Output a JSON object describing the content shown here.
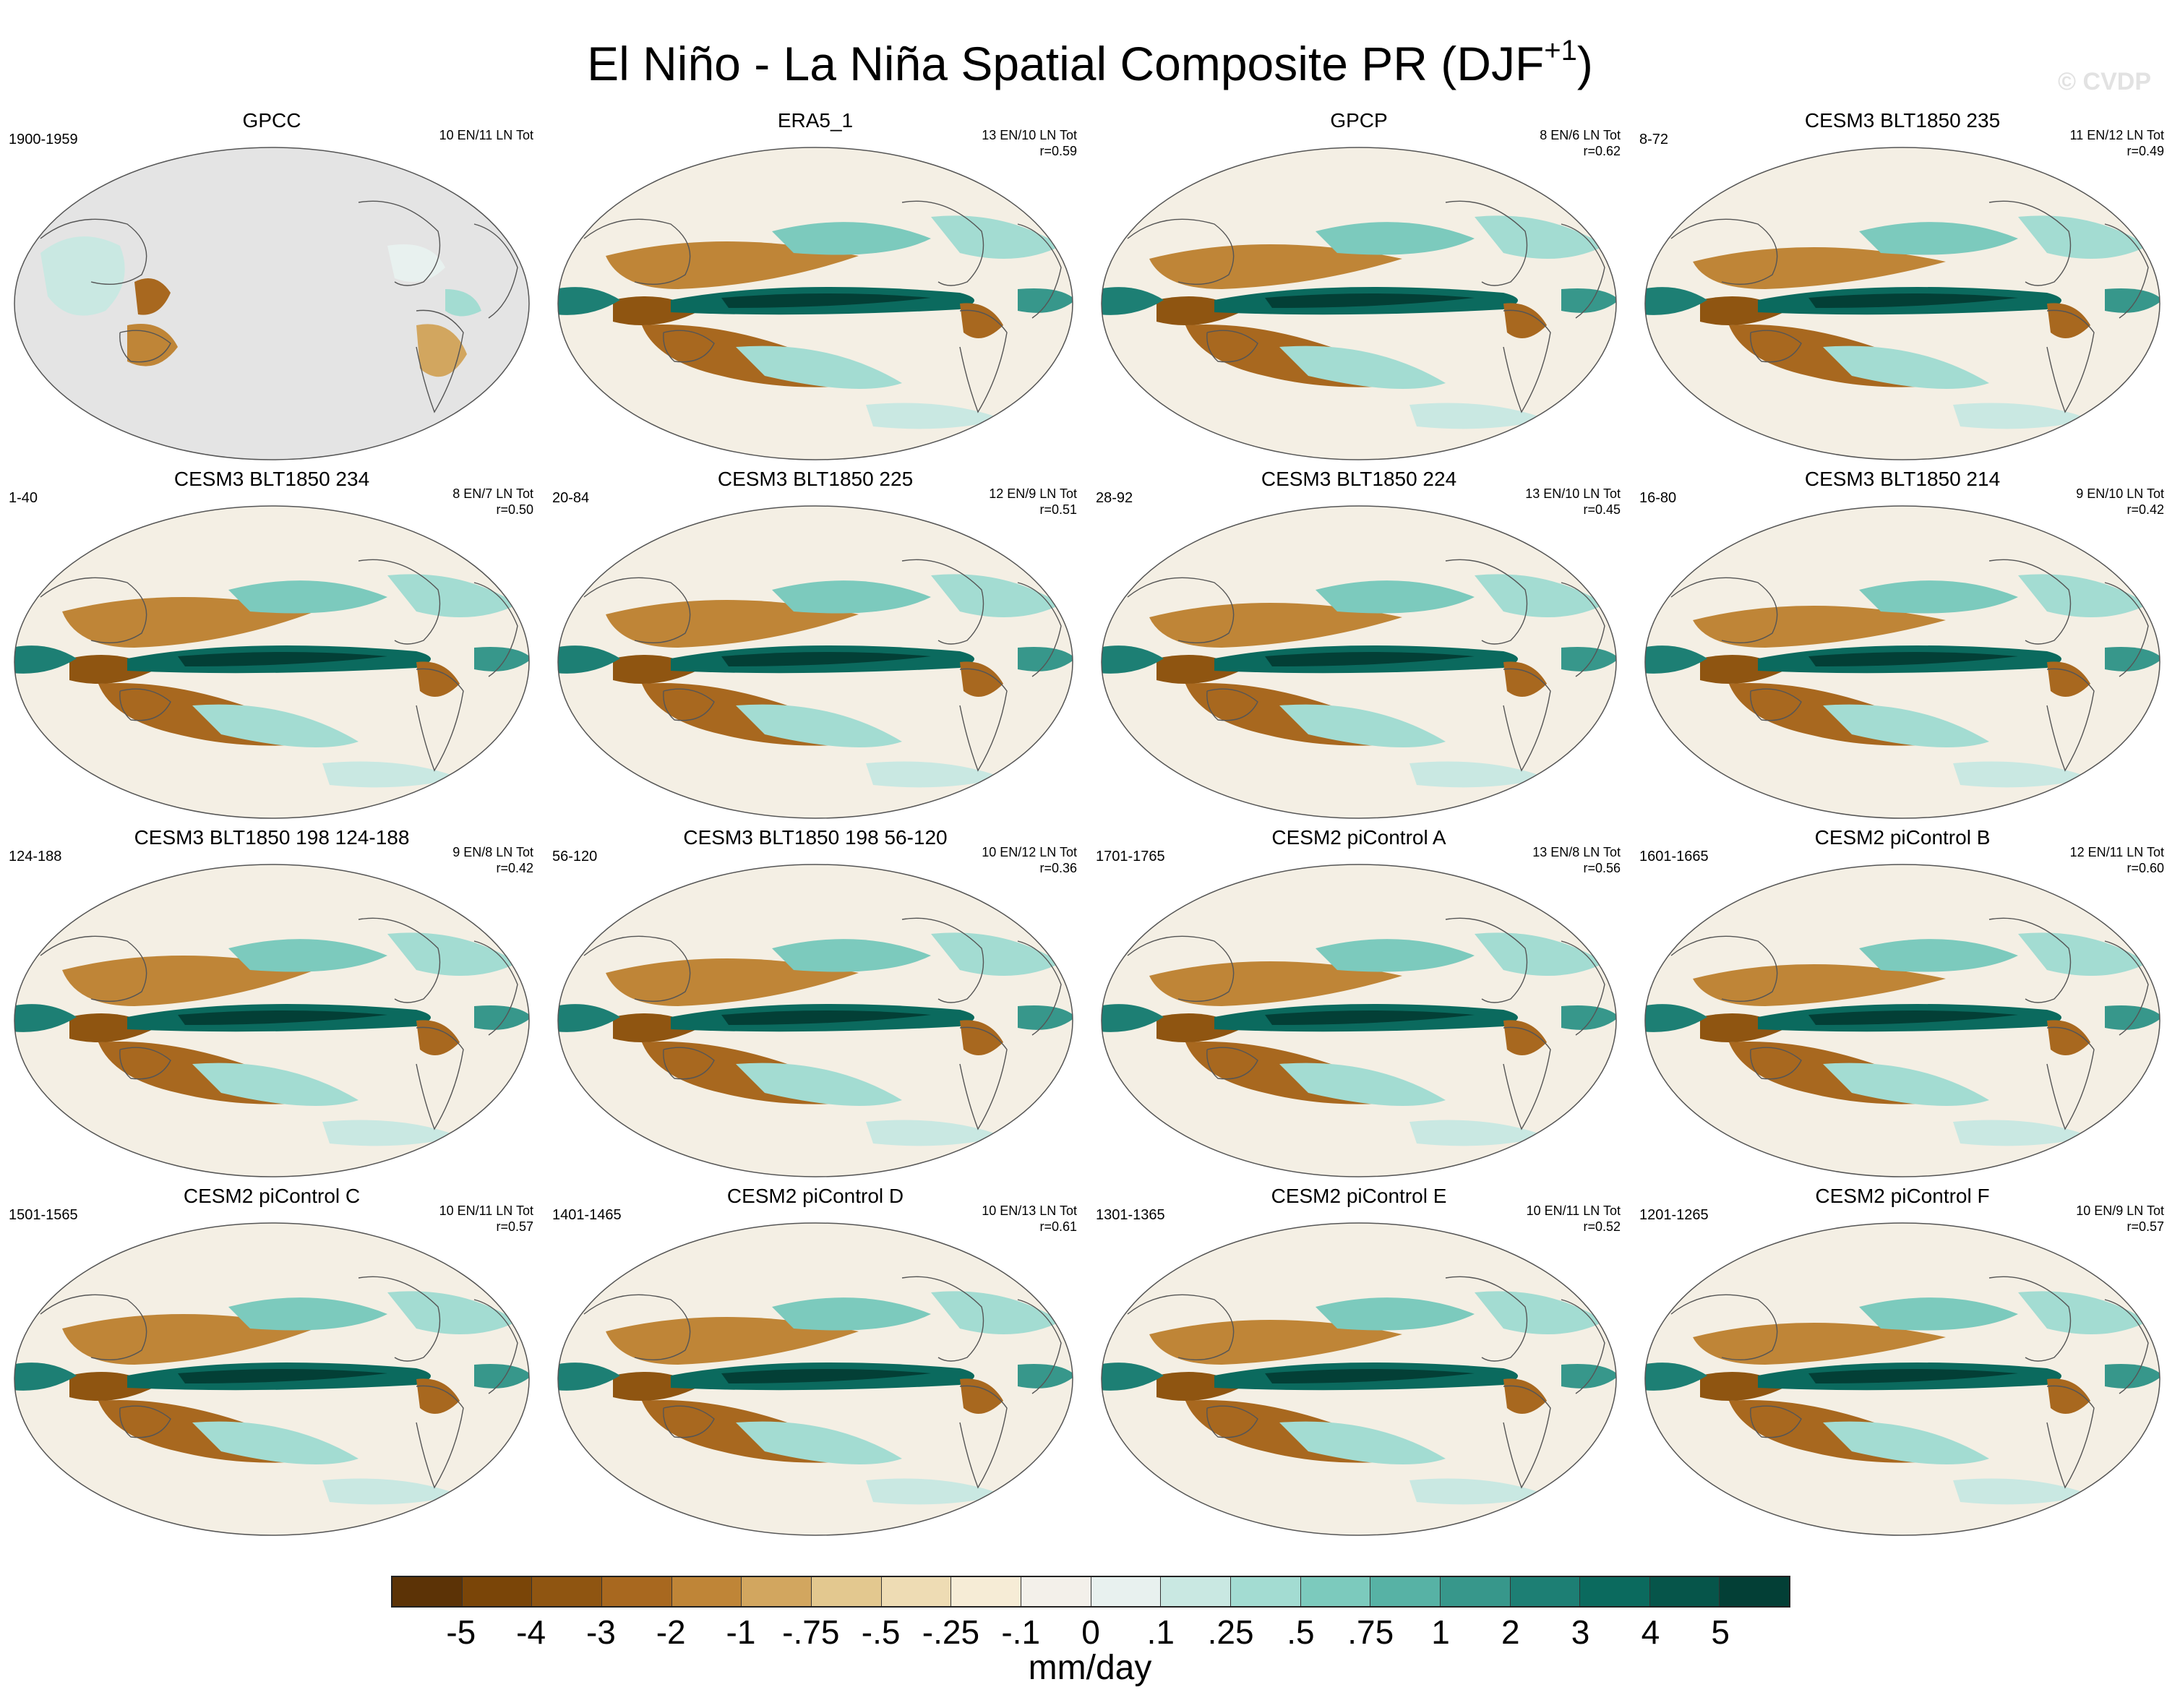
{
  "figure": {
    "title": "El Niño - La Niña Spatial Composite PR (DJF",
    "title_sup": "+1",
    "title_close": ")",
    "watermark": "© CVDP",
    "units": "mm/day"
  },
  "panels": [
    {
      "title": "GPCC",
      "years": "1900-1959",
      "counts": "10 EN/11 LN Tot",
      "r": "",
      "style": "obs"
    },
    {
      "title": "ERA5_1",
      "years": "",
      "counts": "13 EN/10 LN Tot",
      "r": "r=0.59",
      "style": "full"
    },
    {
      "title": "GPCP",
      "years": "",
      "counts": "8 EN/6 LN Tot",
      "r": "r=0.62",
      "style": "full"
    },
    {
      "title": "CESM3 BLT1850 235",
      "years": "8-72",
      "counts": "11 EN/12 LN Tot",
      "r": "r=0.49",
      "style": "full"
    },
    {
      "title": "CESM3 BLT1850 234",
      "years": "1-40",
      "counts": "8 EN/7 LN Tot",
      "r": "r=0.50",
      "style": "full"
    },
    {
      "title": "CESM3 BLT1850 225",
      "years": "20-84",
      "counts": "12 EN/9 LN Tot",
      "r": "r=0.51",
      "style": "full"
    },
    {
      "title": "CESM3 BLT1850 224",
      "years": "28-92",
      "counts": "13 EN/10 LN Tot",
      "r": "r=0.45",
      "style": "full"
    },
    {
      "title": "CESM3 BLT1850 214",
      "years": "16-80",
      "counts": "9 EN/10 LN Tot",
      "r": "r=0.42",
      "style": "full"
    },
    {
      "title": "CESM3 BLT1850 198 124-188",
      "years": "124-188",
      "counts": "9 EN/8 LN Tot",
      "r": "r=0.42",
      "style": "full"
    },
    {
      "title": "CESM3 BLT1850 198 56-120",
      "years": "56-120",
      "counts": "10 EN/12 LN Tot",
      "r": "r=0.36",
      "style": "full"
    },
    {
      "title": "CESM2 piControl A",
      "years": "1701-1765",
      "counts": "13 EN/8 LN Tot",
      "r": "r=0.56",
      "style": "full"
    },
    {
      "title": "CESM2 piControl B",
      "years": "1601-1665",
      "counts": "12 EN/11 LN Tot",
      "r": "r=0.60",
      "style": "full"
    },
    {
      "title": "CESM2 piControl C",
      "years": "1501-1565",
      "counts": "10 EN/11 LN Tot",
      "r": "r=0.57",
      "style": "full"
    },
    {
      "title": "CESM2 piControl D",
      "years": "1401-1465",
      "counts": "10 EN/13 LN Tot",
      "r": "r=0.61",
      "style": "full"
    },
    {
      "title": "CESM2 piControl E",
      "years": "1301-1365",
      "counts": "10 EN/11 LN Tot",
      "r": "r=0.52",
      "style": "full"
    },
    {
      "title": "CESM2 piControl F",
      "years": "1201-1265",
      "counts": "10 EN/9 LN Tot",
      "r": "r=0.57",
      "style": "full"
    }
  ],
  "colorbar": {
    "colors": [
      "#5c3306",
      "#7a4508",
      "#8f5511",
      "#a8681f",
      "#bf8537",
      "#d2a65f",
      "#e3c88f",
      "#eedcb4",
      "#f6ecd6",
      "#f3f0ea",
      "#e8f1ef",
      "#c9e8e2",
      "#a3dcd2",
      "#7ccabd",
      "#57b2a5",
      "#37978b",
      "#1d7f74",
      "#0b6a5e",
      "#06554a",
      "#033f36"
    ],
    "labels": [
      "-5",
      "-4",
      "-3",
      "-2",
      "-1",
      "-.75",
      "-.5",
      "-.25",
      "-.1",
      "0",
      ".1",
      ".25",
      ".5",
      ".75",
      "1",
      "2",
      "3",
      "4",
      "5"
    ]
  }
}
